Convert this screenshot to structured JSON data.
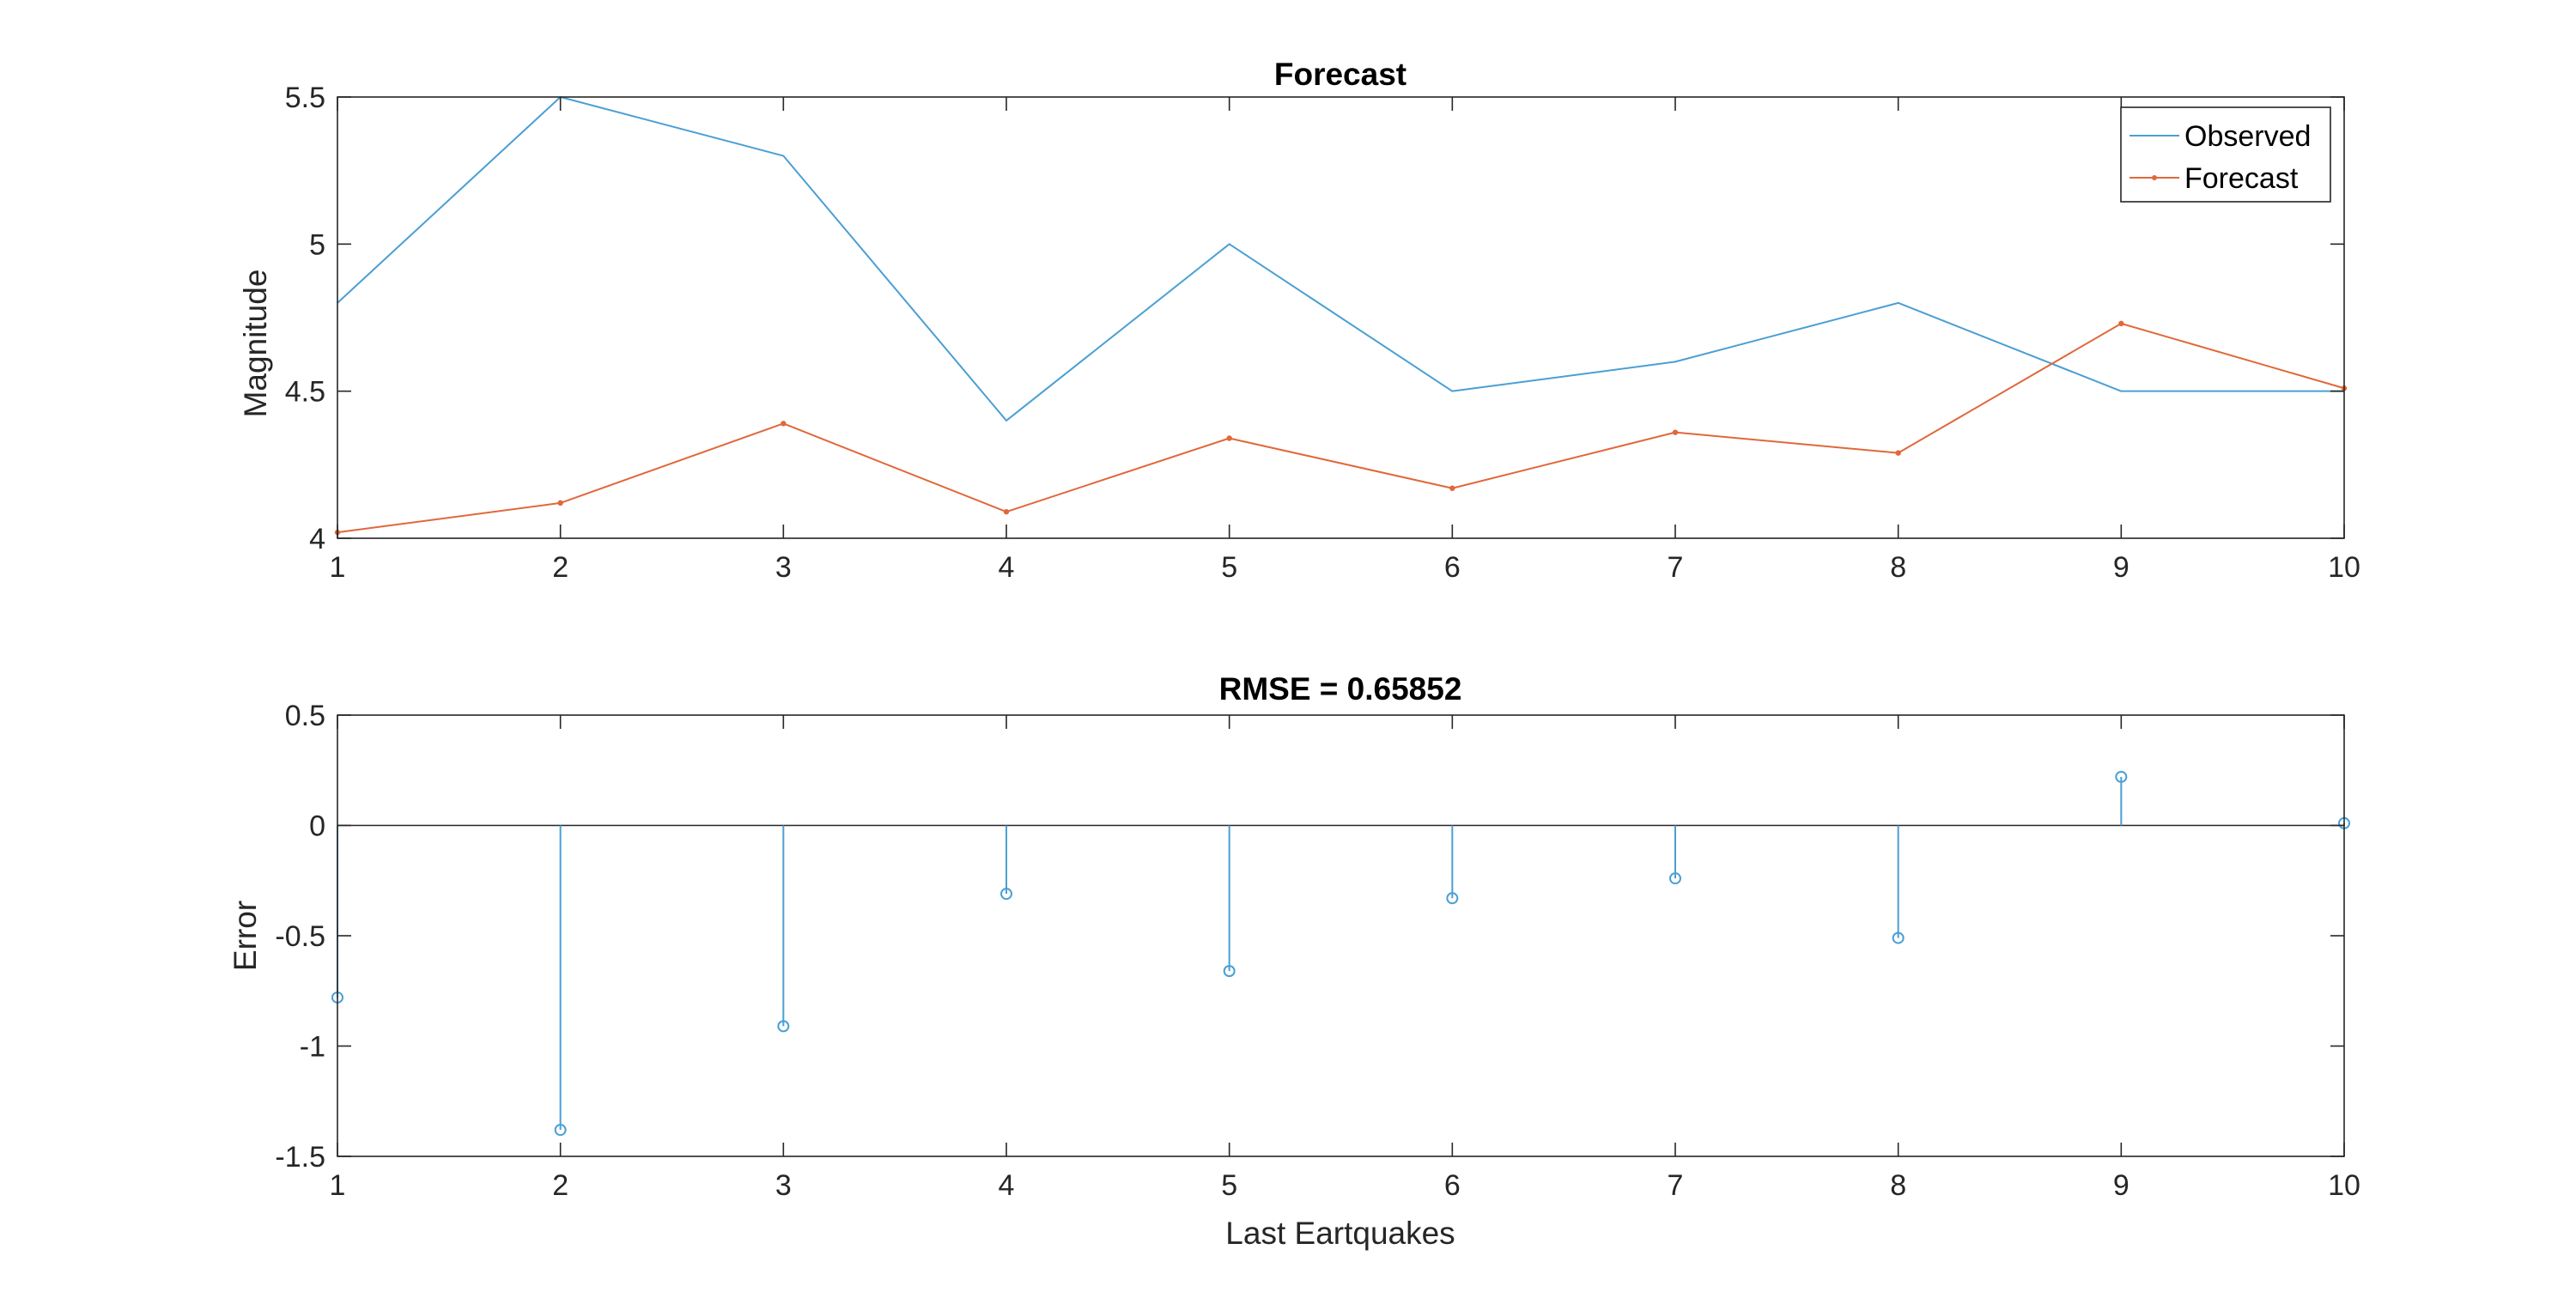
{
  "colors": {
    "observed": "#4a9fd4",
    "forecast": "#e0683a",
    "error": "#4a9fd4",
    "baseline": "#262626"
  },
  "chart_data": [
    {
      "type": "line",
      "title": "Forecast",
      "xlabel": "",
      "ylabel": "Magnitude",
      "x": [
        1,
        2,
        3,
        4,
        5,
        6,
        7,
        8,
        9,
        10
      ],
      "xlim": [
        1,
        10
      ],
      "ylim": [
        4,
        5.5
      ],
      "xticks": [
        "1",
        "2",
        "3",
        "4",
        "5",
        "6",
        "7",
        "8",
        "9",
        "10"
      ],
      "yticks": [
        "4",
        "4.5",
        "5",
        "5.5"
      ],
      "grid": false,
      "legend_position": "top-right",
      "series": [
        {
          "name": "Observed",
          "color": "#4a9fd4",
          "marker": "none",
          "values": [
            4.8,
            5.5,
            5.3,
            4.4,
            5.0,
            4.5,
            4.6,
            4.8,
            4.5,
            4.5
          ]
        },
        {
          "name": "Forecast",
          "color": "#e0683a",
          "marker": "dot",
          "values": [
            4.02,
            4.12,
            4.39,
            4.09,
            4.34,
            4.17,
            4.36,
            4.29,
            4.73,
            4.51
          ]
        }
      ]
    },
    {
      "type": "stem",
      "title": "RMSE = 0.65852",
      "xlabel": "Last Eartquakes",
      "ylabel": "Error",
      "x": [
        1,
        2,
        3,
        4,
        5,
        6,
        7,
        8,
        9,
        10
      ],
      "xlim": [
        1,
        10
      ],
      "ylim": [
        -1.5,
        0.5
      ],
      "xticks": [
        "1",
        "2",
        "3",
        "4",
        "5",
        "6",
        "7",
        "8",
        "9",
        "10"
      ],
      "yticks": [
        "-1.5",
        "-1",
        "-0.5",
        "0",
        "0.5"
      ],
      "grid": false,
      "baseline": 0,
      "series": [
        {
          "color": "#4a9fd4",
          "marker": "circle",
          "values": [
            -0.78,
            -1.38,
            -0.91,
            -0.31,
            -0.66,
            -0.33,
            -0.24,
            -0.51,
            0.22,
            0.01
          ]
        }
      ]
    }
  ]
}
